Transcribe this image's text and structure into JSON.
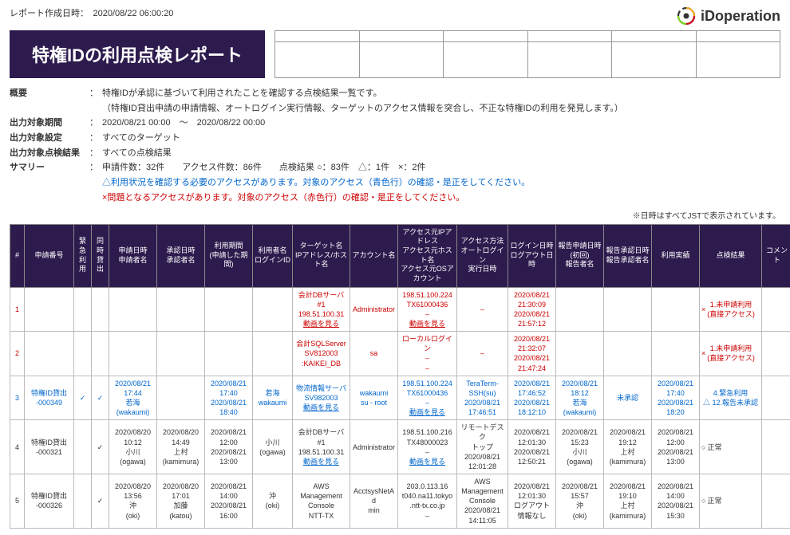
{
  "header": {
    "timestamp_label": "レポート作成日時：",
    "timestamp": "2020/08/22 06:00:20",
    "logo_text": "iDoperation"
  },
  "title": "特権IDの利用点検レポート",
  "meta": {
    "overview_label": "概要",
    "overview_line1": "特権IDが承認に基づいて利用されたことを確認する点検結果一覧です。",
    "overview_line2": "（特権ID貸出申請の申請情報、オートログイン実行情報、ターゲットのアクセス情報を突合し、不正な特権IDの利用を発見します。）",
    "period_label": "出力対象期間",
    "period_value": "2020/08/21 00:00　～　2020/08/22 00:00",
    "setting_label": "出力対象設定",
    "setting_value": "すべてのターゲット",
    "result_label": "出力対象点検結果",
    "result_value": "すべての点検結果",
    "summary_label": "サマリー",
    "summary_line1": "申請件数：32件　　アクセス件数：86件　　点検結果 ○：83件　△：1件　×：2件",
    "summary_line2": "△利用状況を確認する必要のアクセスがあります。対象のアクセス（青色行）の確認・是正をしてください。",
    "summary_line3": "×問題となるアクセスがあります。対象のアクセス（赤色行）の確認・是正をしてください。"
  },
  "footnote": "※日時はすべてJSTで表示されています。",
  "columns": {
    "c0": "#",
    "c1": "申請番号",
    "c2": "緊急\n利用",
    "c3": "同時\n貸出",
    "c4": "申請日時\n申請者名",
    "c5": "承認日時\n承認者名",
    "c6": "利用期間\n(申請した期間)",
    "c7": "利用者名\nログインID",
    "c8": "ターゲット名\nIPアドレス/ホスト名",
    "c9": "アカウント名",
    "c10": "アクセス元IPアドレス\nアクセス元ホスト名\nアクセス元OSアカウント",
    "c11": "アクセス方法\nオートログイン\n実行日時",
    "c12": "ログイン日時\nログアウト日時",
    "c13": "報告申請日時\n(初回)\n報告者名",
    "c14": "報告承認日時\n報告承認者名",
    "c15": "利用実績",
    "c16": "点検結果",
    "c17": "コメント"
  },
  "col_widths": [
    "18",
    "62",
    "22",
    "22",
    "60",
    "60",
    "60",
    "50",
    "72",
    "60",
    "74",
    "64",
    "60",
    "60",
    "60",
    "60",
    "78",
    "38"
  ],
  "rows": [
    {
      "rowClass": "row-red",
      "cells": {
        "c0": "1",
        "c1": "",
        "c2": "",
        "c3": "",
        "c4": "",
        "c5": "",
        "c6": "",
        "c7": "",
        "c8": {
          "lines": [
            "会計DBサーバ#1",
            "198.51.100.31"
          ],
          "link": "動画を見る"
        },
        "c9": "Administrator",
        "c10": {
          "lines": [
            "198.51.100.224",
            "TX61000436",
            "–"
          ],
          "link": "動画を見る"
        },
        "c11": "–",
        "c12": {
          "lines": [
            "2020/08/21",
            "21:30:09",
            "2020/08/21",
            "21:57:12"
          ]
        },
        "c13": "",
        "c14": "",
        "c15": "",
        "c16": {
          "mark": "×",
          "lines": [
            "1.未申請利用",
            "(直接アクセス)"
          ]
        },
        "c17": ""
      }
    },
    {
      "rowClass": "row-red",
      "cells": {
        "c0": "2",
        "c1": "",
        "c2": "",
        "c3": "",
        "c4": "",
        "c5": "",
        "c6": "",
        "c7": "",
        "c8": {
          "lines": [
            "会計SQLServer",
            "SV812003",
            ":KAIKEI_DB"
          ]
        },
        "c9": "sa",
        "c10": {
          "lines": [
            "ローカルログイン",
            "–",
            "–"
          ]
        },
        "c11": "–",
        "c12": {
          "lines": [
            "2020/08/21",
            "21:32:07",
            "2020/08/21",
            "21:47:24"
          ]
        },
        "c13": "",
        "c14": "",
        "c15": "",
        "c16": {
          "mark": "×",
          "lines": [
            "1.未申請利用",
            "(直接アクセス)"
          ]
        },
        "c17": ""
      }
    },
    {
      "rowClass": "row-blue",
      "cells": {
        "c0": "3",
        "c1": {
          "lines": [
            "特権ID貸出",
            "-000349"
          ]
        },
        "c2": "✓",
        "c3": "✓",
        "c4": {
          "lines": [
            "2020/08/21",
            "17:44",
            "若海",
            "(wakaumi)"
          ]
        },
        "c5": "",
        "c6": {
          "lines": [
            "2020/08/21",
            "17:40",
            "2020/08/21",
            "18:40"
          ]
        },
        "c7": {
          "lines": [
            "若海",
            "wakaumi"
          ]
        },
        "c8": {
          "lines": [
            "物流情報サーバ",
            "SV982003"
          ],
          "link": "動画を見る"
        },
        "c9": {
          "lines": [
            "wakaumi",
            "su - root"
          ]
        },
        "c10": {
          "lines": [
            "198.51.100.224",
            "TX61000436",
            "–"
          ],
          "link": "動画を見る"
        },
        "c11": {
          "lines": [
            "TeraTerm-",
            "SSH(su)",
            "2020/08/21",
            "17:46:51"
          ]
        },
        "c12": {
          "lines": [
            "2020/08/21",
            "17:46:52",
            "2020/08/21",
            "18:12:10"
          ]
        },
        "c13": {
          "lines": [
            "2020/08/21",
            "18:12",
            "若海",
            "(wakaumi)"
          ]
        },
        "c14": "未承認",
        "c15": {
          "lines": [
            "2020/08/21",
            "17:40",
            "2020/08/21",
            "18:20"
          ]
        },
        "c16": {
          "mark": "",
          "lines": [
            "4.緊急利用",
            "△ 12.報告未承認"
          ]
        },
        "c17": ""
      }
    },
    {
      "rowClass": "",
      "cells": {
        "c0": "4",
        "c1": {
          "lines": [
            "特権ID貸出",
            "-000321"
          ]
        },
        "c2": "",
        "c3": "✓",
        "c4": {
          "lines": [
            "2020/08/20",
            "10:12",
            "小川",
            "(ogawa)"
          ]
        },
        "c5": {
          "lines": [
            "2020/08/20",
            "14:49",
            "上村",
            "(kamimura)"
          ]
        },
        "c6": {
          "lines": [
            "2020/08/21",
            "12:00",
            "2020/08/21",
            "13:00"
          ]
        },
        "c7": {
          "lines": [
            "小川",
            "(ogawa)"
          ]
        },
        "c8": {
          "lines": [
            "会計DBサーバ#1",
            "198.51.100.31"
          ],
          "link": "動画を見る"
        },
        "c9": "Administrator",
        "c10": {
          "lines": [
            "198.51.100.216",
            "TX48000023",
            "–"
          ],
          "link": "動画を見る"
        },
        "c11": {
          "lines": [
            "リモートデスク",
            "トップ",
            "2020/08/21",
            "12:01:28"
          ]
        },
        "c12": {
          "lines": [
            "2020/08/21",
            "12:01:30",
            "2020/08/21",
            "12:50:21"
          ]
        },
        "c13": {
          "lines": [
            "2020/08/21",
            "15:23",
            "小川",
            "(ogawa)"
          ]
        },
        "c14": {
          "lines": [
            "2020/08/21",
            "19:12",
            "上村",
            "(kamimura)"
          ]
        },
        "c15": {
          "lines": [
            "2020/08/21",
            "12:00",
            "2020/08/21",
            "13:00"
          ]
        },
        "c16": {
          "mark": "○",
          "lines": [
            "正常"
          ]
        },
        "c17": ""
      }
    },
    {
      "rowClass": "",
      "cells": {
        "c0": "5",
        "c1": {
          "lines": [
            "特権ID貸出",
            "-000326"
          ]
        },
        "c2": "",
        "c3": "✓",
        "c4": {
          "lines": [
            "2020/08/20",
            "13:56",
            "沖",
            "(oki)"
          ]
        },
        "c5": {
          "lines": [
            "2020/08/20",
            "17:01",
            "加藤",
            "(katou)"
          ]
        },
        "c6": {
          "lines": [
            "2020/08/21",
            "14:00",
            "2020/08/21",
            "16:00"
          ]
        },
        "c7": {
          "lines": [
            "沖",
            "(oki)"
          ]
        },
        "c8": {
          "lines": [
            "AWS",
            "Management",
            "Console",
            "NTT-TX"
          ]
        },
        "c9": {
          "lines": [
            "AcctsysNetAd",
            "min"
          ]
        },
        "c10": {
          "lines": [
            "203.0.113.16",
            "t040.na11.tokyo",
            ".ntt-tx.co.jp",
            "–"
          ]
        },
        "c11": {
          "lines": [
            "AWS",
            "Management",
            "Console",
            "2020/08/21",
            "14:11:05"
          ]
        },
        "c12": {
          "lines": [
            "2020/08/21",
            "12:01:30",
            "ログアウト",
            "情報なし"
          ]
        },
        "c13": {
          "lines": [
            "2020/08/21",
            "15:57",
            "沖",
            "(oki)"
          ]
        },
        "c14": {
          "lines": [
            "2020/08/21",
            "19:10",
            "上村",
            "(kamimura)"
          ]
        },
        "c15": {
          "lines": [
            "2020/08/21",
            "14:00",
            "2020/08/21",
            "15:30"
          ]
        },
        "c16": {
          "mark": "○",
          "lines": [
            "正常"
          ]
        },
        "c17": ""
      }
    }
  ]
}
